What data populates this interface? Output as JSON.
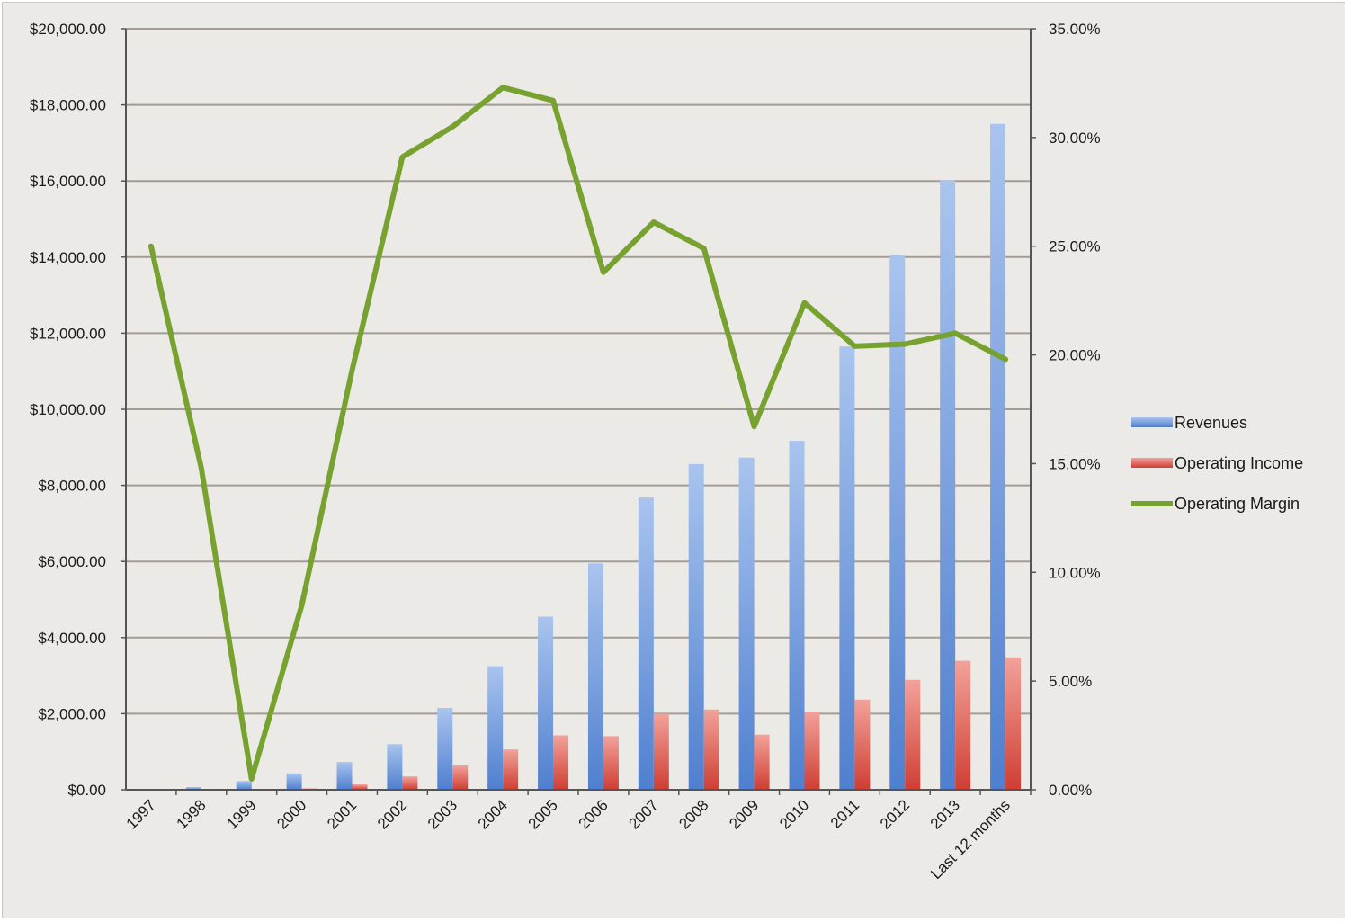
{
  "chart_data": {
    "type": "bar",
    "categories": [
      "1997",
      "1998",
      "1999",
      "2000",
      "2001",
      "2002",
      "2003",
      "2004",
      "2005",
      "2006",
      "2007",
      "2008",
      "2009",
      "2010",
      "2011",
      "2012",
      "2013",
      "Last 12 months"
    ],
    "series": [
      {
        "name": "Revenues",
        "kind": "bar",
        "axis": "left",
        "color": "#6f9be0",
        "values": [
          20,
          70,
          230,
          430,
          730,
          1200,
          2150,
          3250,
          4550,
          5950,
          7680,
          8560,
          8730,
          9170,
          11650,
          14060,
          16020,
          17500
        ]
      },
      {
        "name": "Operating Income",
        "kind": "bar",
        "axis": "left",
        "color": "#e4665c",
        "values": [
          5,
          10,
          5,
          35,
          140,
          350,
          640,
          1060,
          1430,
          1410,
          2000,
          2110,
          1450,
          2050,
          2370,
          2890,
          3390,
          3480
        ]
      },
      {
        "name": "Operating Margin",
        "kind": "line",
        "axis": "right",
        "color": "#78a22f",
        "values": [
          25.0,
          14.8,
          0.5,
          8.5,
          19.3,
          29.1,
          30.5,
          32.3,
          31.7,
          23.8,
          26.1,
          24.9,
          16.7,
          22.4,
          20.4,
          20.5,
          21.0,
          19.8
        ]
      }
    ],
    "left_axis": {
      "min": 0,
      "max": 20000,
      "step": 2000,
      "tick_labels": [
        "$0.00",
        "$2,000.00",
        "$4,000.00",
        "$6,000.00",
        "$8,000.00",
        "$10,000.00",
        "$12,000.00",
        "$14,000.00",
        "$16,000.00",
        "$18,000.00",
        "$20,000.00"
      ]
    },
    "right_axis": {
      "min": 0,
      "max": 35,
      "step": 5,
      "tick_labels": [
        "0.00%",
        "5.00%",
        "10.00%",
        "15.00%",
        "20.00%",
        "25.00%",
        "30.00%",
        "35.00%"
      ]
    },
    "title": "",
    "xlabel": "",
    "ylabel": "",
    "grid": true,
    "legend_position": "right",
    "colors": {
      "background": "#eceae6",
      "gridline": "#a39b95",
      "axis": "#555555",
      "text": "#1a1a1a"
    }
  }
}
